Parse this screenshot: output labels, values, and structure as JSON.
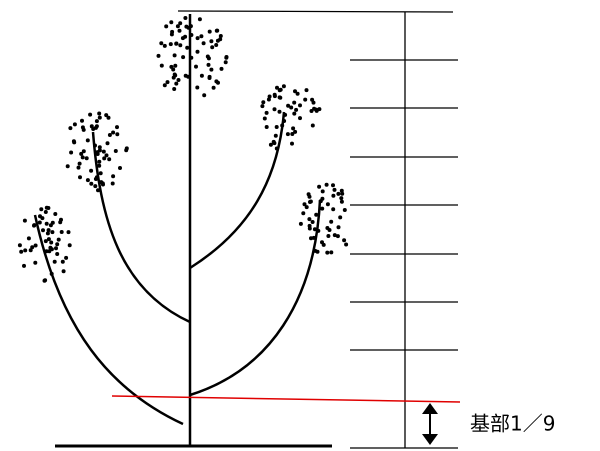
{
  "annotation": {
    "label": "基部1／9"
  }
}
